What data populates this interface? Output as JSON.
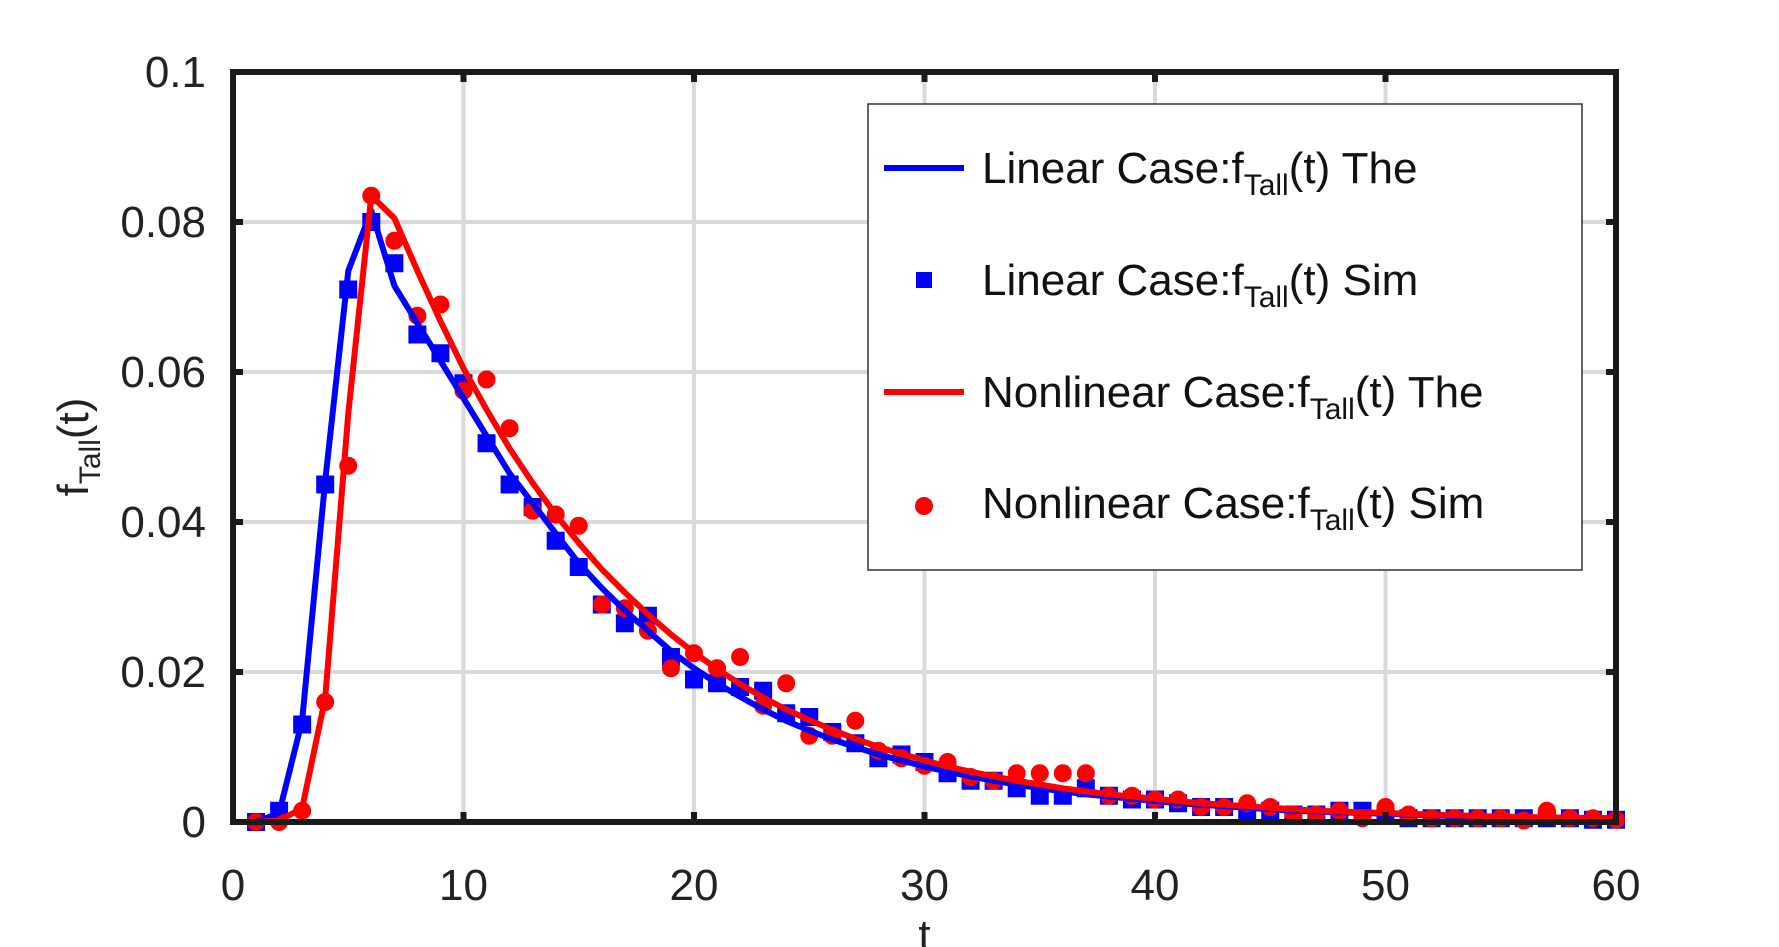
{
  "chart_data": {
    "type": "line",
    "title": "",
    "xlabel": "t",
    "ylabel": {
      "main": "f",
      "sub": "Tall",
      "suffix": "(t)"
    },
    "xlim": [
      0,
      60
    ],
    "ylim": [
      0,
      0.1
    ],
    "xticks": [
      0,
      10,
      20,
      30,
      40,
      50,
      60
    ],
    "xtick_labels": [
      "0",
      "10",
      "20",
      "30",
      "40",
      "50",
      "60"
    ],
    "yticks": [
      0,
      0.02,
      0.04,
      0.06,
      0.08,
      0.1
    ],
    "ytick_labels": [
      "0",
      "0.02",
      "0.04",
      "0.06",
      "0.08",
      "0.1"
    ],
    "grid": true,
    "legend_position": "top-right",
    "series": [
      {
        "label": {
          "main": "Linear Case:f",
          "sub": "Tall",
          "suffix": "(t) The"
        },
        "kind": "line",
        "color": "#0000ff",
        "x": [
          1,
          2,
          3,
          4,
          5,
          6,
          7,
          8,
          9,
          10,
          11,
          12,
          13,
          14,
          15,
          16,
          17,
          18,
          19,
          20,
          21,
          22,
          23,
          24,
          25,
          26,
          27,
          28,
          29,
          30,
          31,
          32,
          33,
          34,
          35,
          36,
          37,
          38,
          39,
          40,
          41,
          42,
          43,
          44,
          45,
          46,
          47,
          48,
          49,
          50,
          51,
          52,
          53,
          54,
          55,
          56,
          57,
          58,
          59,
          60
        ],
        "y": [
          0,
          0.0012,
          0.0135,
          0.0455,
          0.0735,
          0.0815,
          0.0715,
          0.0665,
          0.0615,
          0.0565,
          0.0515,
          0.0465,
          0.0425,
          0.0385,
          0.0345,
          0.0312,
          0.0282,
          0.0255,
          0.0228,
          0.0205,
          0.0185,
          0.0167,
          0.015,
          0.0135,
          0.0122,
          0.011,
          0.01,
          0.009,
          0.0082,
          0.0074,
          0.0067,
          0.0061,
          0.0055,
          0.005,
          0.0045,
          0.0041,
          0.0037,
          0.0034,
          0.0031,
          0.0028,
          0.0025,
          0.0023,
          0.0021,
          0.0019,
          0.0017,
          0.0015,
          0.0014,
          0.0013,
          0.0012,
          0.0011,
          0.001,
          0.0009,
          0.0008,
          0.0007,
          0.0007,
          0.0006,
          0.0006,
          0.0005,
          0.0005,
          0.0005
        ]
      },
      {
        "label": {
          "main": "Linear Case:f",
          "sub": "Tall",
          "suffix": "(t) Sim"
        },
        "kind": "square",
        "color": "#0000ff",
        "x": [
          1,
          2,
          3,
          4,
          5,
          6,
          7,
          8,
          9,
          10,
          11,
          12,
          13,
          14,
          15,
          16,
          17,
          18,
          19,
          20,
          21,
          22,
          23,
          24,
          25,
          26,
          27,
          28,
          29,
          30,
          31,
          32,
          33,
          34,
          35,
          36,
          37,
          38,
          39,
          40,
          41,
          42,
          43,
          44,
          45,
          46,
          47,
          48,
          49,
          50,
          51,
          52,
          53,
          54,
          55,
          56,
          57,
          58,
          59,
          60
        ],
        "y": [
          0,
          0.0015,
          0.013,
          0.045,
          0.071,
          0.08,
          0.0745,
          0.065,
          0.0625,
          0.0585,
          0.0505,
          0.045,
          0.042,
          0.0375,
          0.034,
          0.029,
          0.0265,
          0.0275,
          0.022,
          0.019,
          0.0185,
          0.018,
          0.0175,
          0.0145,
          0.014,
          0.012,
          0.0105,
          0.0085,
          0.009,
          0.008,
          0.0065,
          0.0055,
          0.0055,
          0.0045,
          0.0035,
          0.0035,
          0.0045,
          0.0035,
          0.003,
          0.003,
          0.0025,
          0.002,
          0.002,
          0.001,
          0.0015,
          0.001,
          0.001,
          0.0015,
          0.0015,
          0.001,
          0.0005,
          0.0005,
          0.0005,
          0.0005,
          0.0005,
          0.0005,
          0.0005,
          0.0005,
          0.0003,
          0.0003
        ]
      },
      {
        "label": {
          "main": "Nonlinear Case:f",
          "sub": "Tall",
          "suffix": "(t) The"
        },
        "kind": "line",
        "color": "#ff0000",
        "x": [
          1,
          2,
          3,
          4,
          5,
          6,
          7,
          8,
          9,
          10,
          11,
          12,
          13,
          14,
          15,
          16,
          17,
          18,
          19,
          20,
          21,
          22,
          23,
          24,
          25,
          26,
          27,
          28,
          29,
          30,
          31,
          32,
          33,
          34,
          35,
          36,
          37,
          38,
          39,
          40,
          41,
          42,
          43,
          44,
          45,
          46,
          47,
          48,
          49,
          50,
          51,
          52,
          53,
          54,
          55,
          56,
          57,
          58,
          59,
          60
        ],
        "y": [
          0,
          0.0002,
          0.0018,
          0.0165,
          0.0545,
          0.0835,
          0.0805,
          0.0735,
          0.0668,
          0.0605,
          0.055,
          0.0498,
          0.0452,
          0.041,
          0.0372,
          0.0337,
          0.0306,
          0.0277,
          0.025,
          0.0226,
          0.0204,
          0.0184,
          0.0166,
          0.015,
          0.0136,
          0.0123,
          0.0111,
          0.01,
          0.0091,
          0.0082,
          0.0074,
          0.0067,
          0.0061,
          0.0055,
          0.005,
          0.0045,
          0.0041,
          0.0037,
          0.0034,
          0.0031,
          0.0028,
          0.0025,
          0.0023,
          0.0021,
          0.0019,
          0.0017,
          0.0015,
          0.0014,
          0.0013,
          0.0012,
          0.0011,
          0.001,
          0.0009,
          0.0008,
          0.0007,
          0.0007,
          0.0006,
          0.0006,
          0.0005,
          0.0005
        ]
      },
      {
        "label": {
          "main": "Nonlinear Case:f",
          "sub": "Tall",
          "suffix": "(t) Sim"
        },
        "kind": "circle",
        "color": "#ff0000",
        "x": [
          1,
          2,
          3,
          4,
          5,
          6,
          7,
          8,
          9,
          10,
          11,
          12,
          13,
          14,
          15,
          16,
          17,
          18,
          19,
          20,
          21,
          22,
          23,
          24,
          25,
          26,
          27,
          28,
          29,
          30,
          31,
          32,
          33,
          34,
          35,
          36,
          37,
          38,
          39,
          40,
          41,
          42,
          43,
          44,
          45,
          46,
          47,
          48,
          49,
          50,
          51,
          52,
          53,
          54,
          55,
          56,
          57,
          58,
          59,
          60
        ],
        "y": [
          0,
          0,
          0.0015,
          0.016,
          0.0475,
          0.0835,
          0.0775,
          0.0675,
          0.069,
          0.0575,
          0.059,
          0.0525,
          0.0415,
          0.041,
          0.0395,
          0.029,
          0.0285,
          0.0255,
          0.0205,
          0.0225,
          0.0205,
          0.022,
          0.0155,
          0.0185,
          0.0115,
          0.0115,
          0.0135,
          0.0095,
          0.0085,
          0.0075,
          0.008,
          0.006,
          0.0055,
          0.0065,
          0.0065,
          0.0065,
          0.0065,
          0.0035,
          0.0035,
          0.003,
          0.003,
          0.002,
          0.002,
          0.0025,
          0.002,
          0.001,
          0.001,
          0.0015,
          0.0005,
          0.002,
          0.001,
          0.0005,
          0.0005,
          0.0005,
          0.0005,
          0.0002,
          0.0015,
          0.0005,
          0.0005,
          0.0003
        ]
      }
    ]
  }
}
